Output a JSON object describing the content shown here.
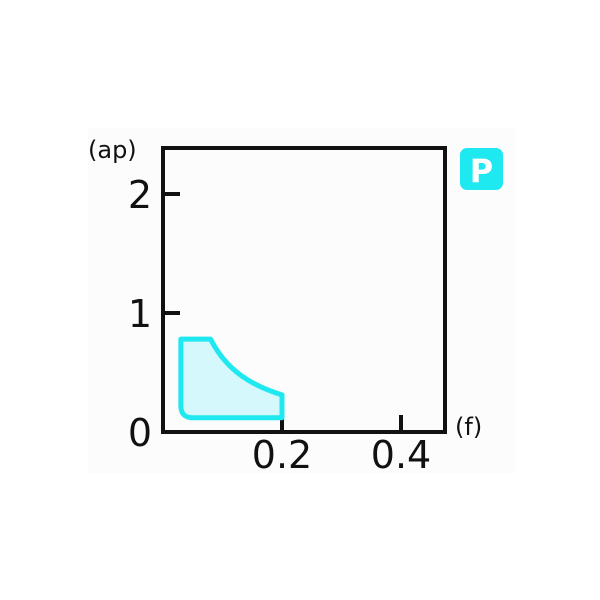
{
  "chart_data": {
    "type": "area",
    "xlabel": "(f)",
    "ylabel": "(ap)",
    "xlim": [
      0,
      0.475
    ],
    "ylim": [
      0,
      2.4
    ],
    "x_ticks": [
      0.2,
      0.4
    ],
    "x_tick_labels": [
      "0.2",
      "0.4"
    ],
    "y_ticks": [
      0,
      1,
      2
    ],
    "y_tick_labels": [
      "0",
      "1",
      "2"
    ],
    "grid": false,
    "region": {
      "f_min": 0.03,
      "f_max": 0.2,
      "ap_min": 0.12,
      "ap_max": 0.78,
      "curve_knee_f": 0.08,
      "curve_end_ap": 0.31,
      "color": "#1ee8f0",
      "fill": "#d4f8fb"
    },
    "badge": {
      "label": "P",
      "color": "#1ee8f0"
    }
  }
}
